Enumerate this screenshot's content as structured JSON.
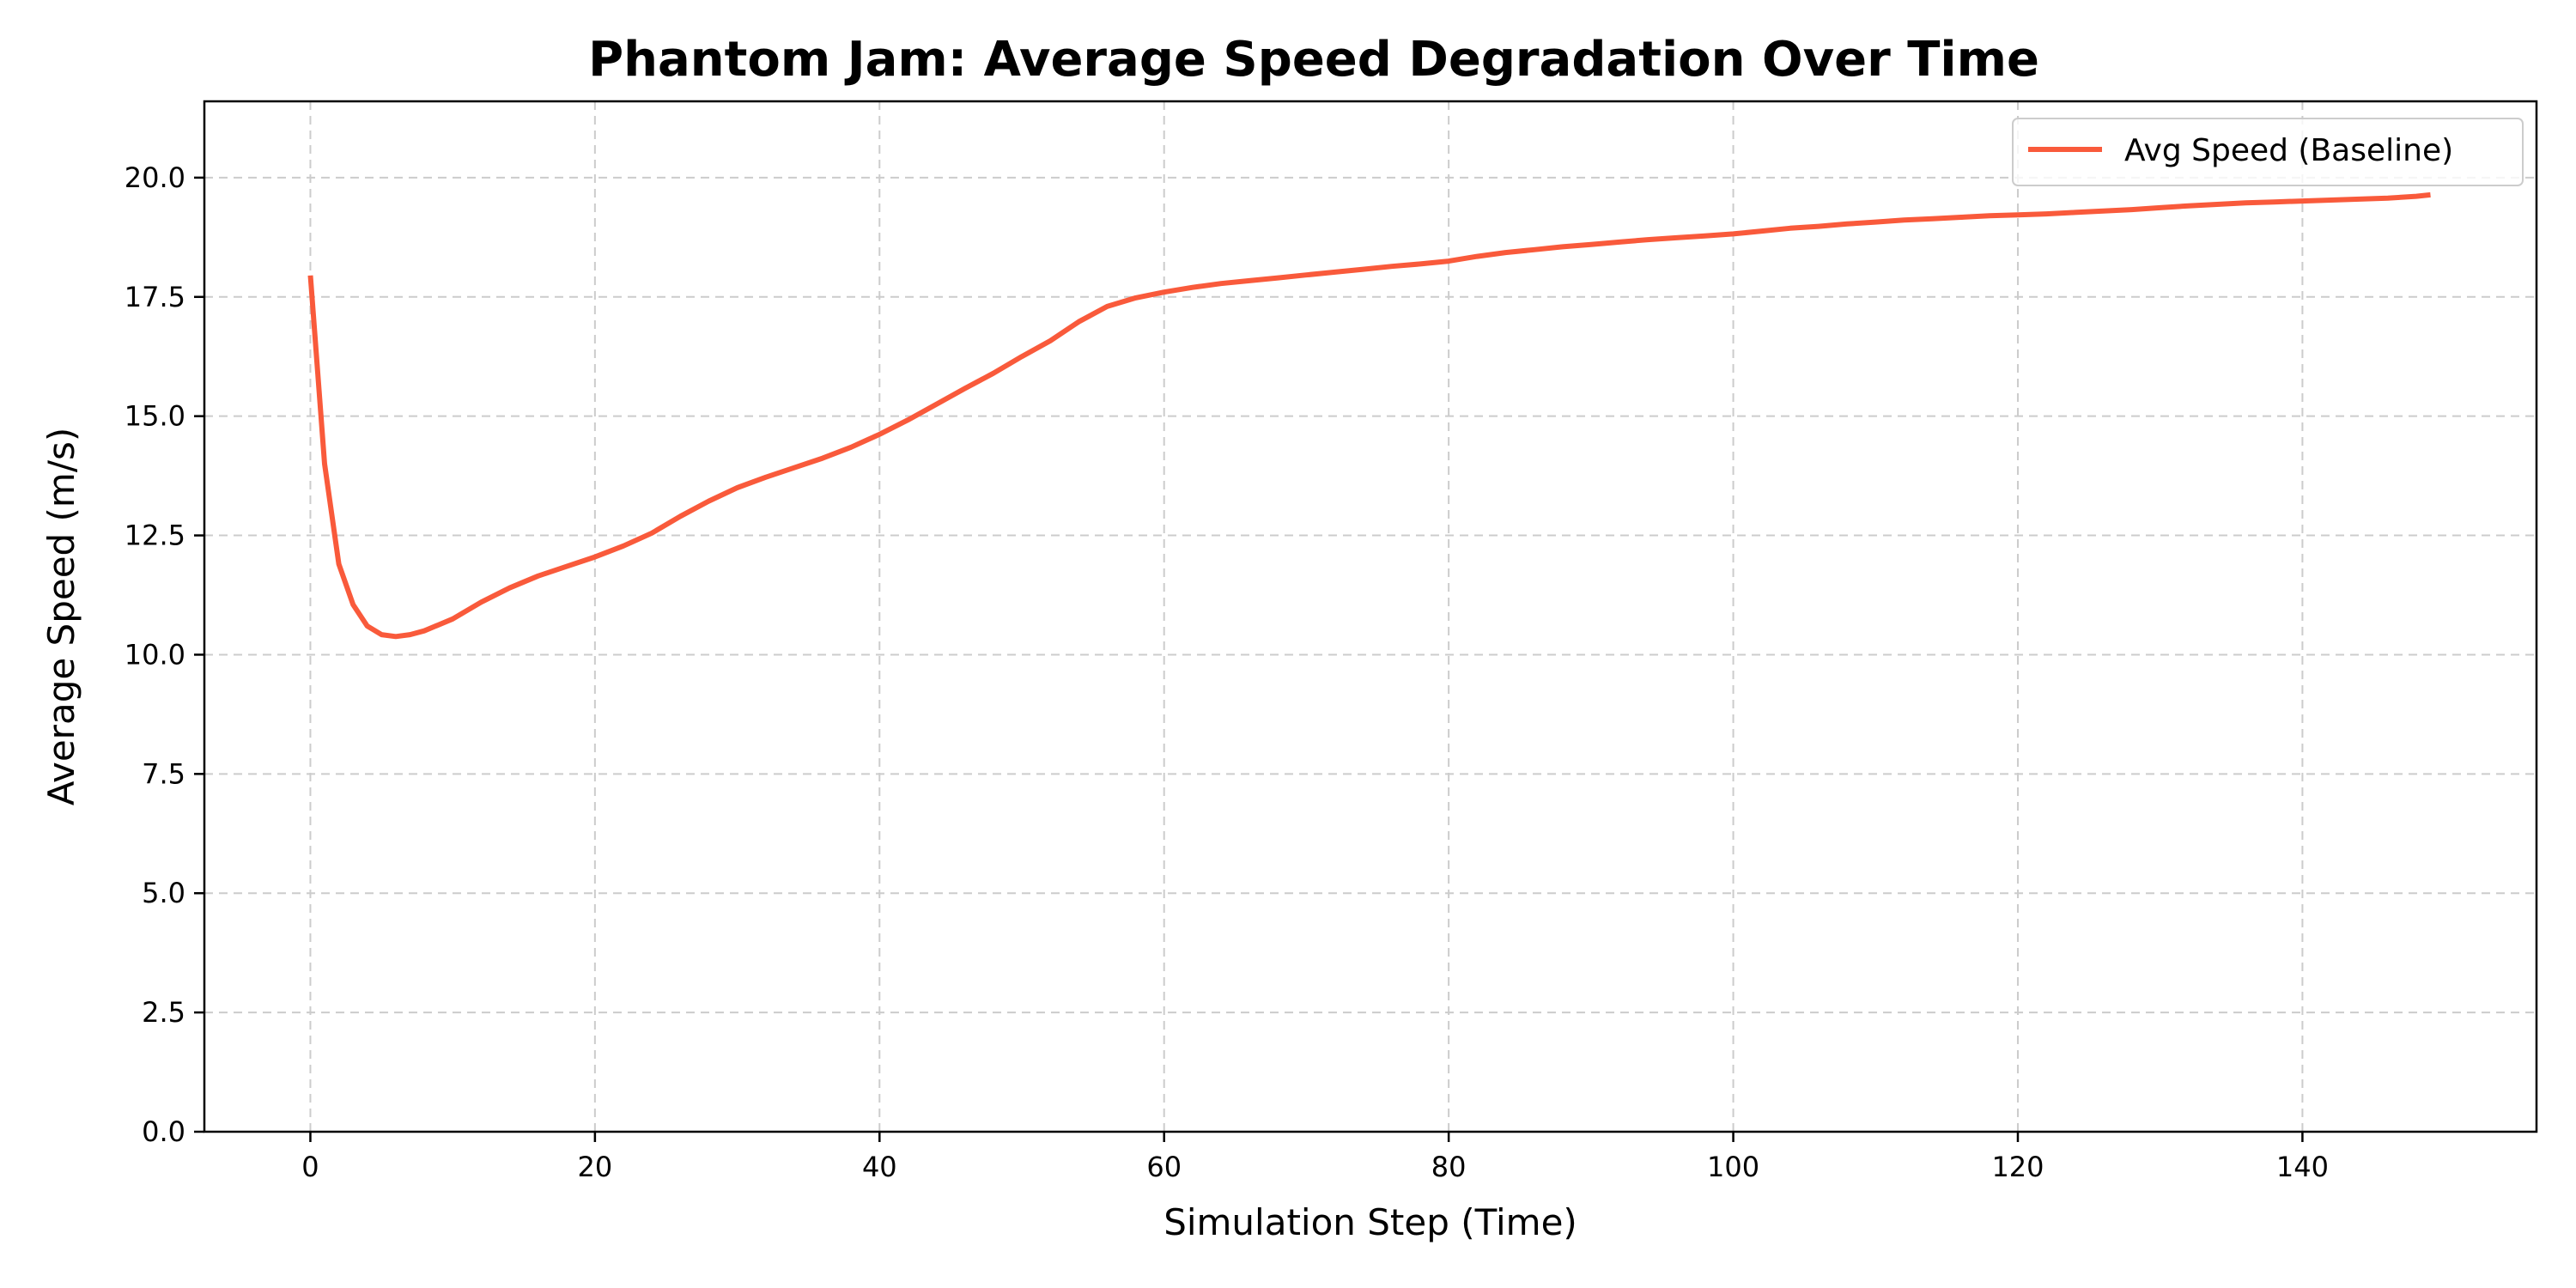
{
  "chart_data": {
    "type": "line",
    "title": "Phantom Jam: Average Speed Degradation Over Time",
    "xlabel": "Simulation Step (Time)",
    "ylabel": "Average Speed (m/s)",
    "xlim": [
      -7.45,
      156.45
    ],
    "ylim": [
      0,
      21.6
    ],
    "xticks": [
      0,
      20,
      40,
      60,
      80,
      100,
      120,
      140
    ],
    "xtick_labels": [
      "0",
      "20",
      "40",
      "60",
      "80",
      "100",
      "120",
      "140"
    ],
    "yticks": [
      0,
      2.5,
      5,
      7.5,
      10,
      12.5,
      15,
      17.5,
      20
    ],
    "ytick_labels": [
      "0.0",
      "2.5",
      "5.0",
      "7.5",
      "10.0",
      "12.5",
      "15.0",
      "17.5",
      "20.0"
    ],
    "grid": true,
    "legend_position": "top-right",
    "series": [
      {
        "name": "Avg Speed (Baseline)",
        "color": "#f95a3b",
        "x": [
          0,
          1,
          2,
          3,
          4,
          5,
          6,
          7,
          8,
          10,
          12,
          14,
          16,
          18,
          20,
          22,
          24,
          26,
          28,
          30,
          32,
          34,
          36,
          38,
          40,
          42,
          44,
          46,
          48,
          50,
          52,
          54,
          56,
          58,
          60,
          62,
          64,
          66,
          68,
          70,
          72,
          74,
          76,
          78,
          80,
          82,
          84,
          86,
          88,
          90,
          92,
          94,
          96,
          98,
          100,
          102,
          104,
          106,
          108,
          110,
          112,
          114,
          116,
          118,
          120,
          122,
          124,
          126,
          128,
          130,
          132,
          134,
          136,
          138,
          140,
          142,
          144,
          146,
          148,
          149
        ],
        "values": [
          17.95,
          14.0,
          11.9,
          11.05,
          10.6,
          10.42,
          10.38,
          10.42,
          10.5,
          10.75,
          11.1,
          11.4,
          11.65,
          11.85,
          12.05,
          12.28,
          12.55,
          12.9,
          13.22,
          13.5,
          13.72,
          13.92,
          14.12,
          14.35,
          14.62,
          14.92,
          15.25,
          15.58,
          15.9,
          16.25,
          16.58,
          16.98,
          17.3,
          17.48,
          17.6,
          17.7,
          17.78,
          17.84,
          17.9,
          17.96,
          18.02,
          18.08,
          18.14,
          18.19,
          18.25,
          18.35,
          18.43,
          18.49,
          18.55,
          18.6,
          18.65,
          18.7,
          18.74,
          18.78,
          18.82,
          18.88,
          18.94,
          18.98,
          19.03,
          19.07,
          19.11,
          19.14,
          19.17,
          19.2,
          19.22,
          19.24,
          19.27,
          19.3,
          19.33,
          19.37,
          19.41,
          19.44,
          19.47,
          19.49,
          19.51,
          19.53,
          19.55,
          19.57,
          19.61,
          19.64
        ]
      }
    ]
  }
}
